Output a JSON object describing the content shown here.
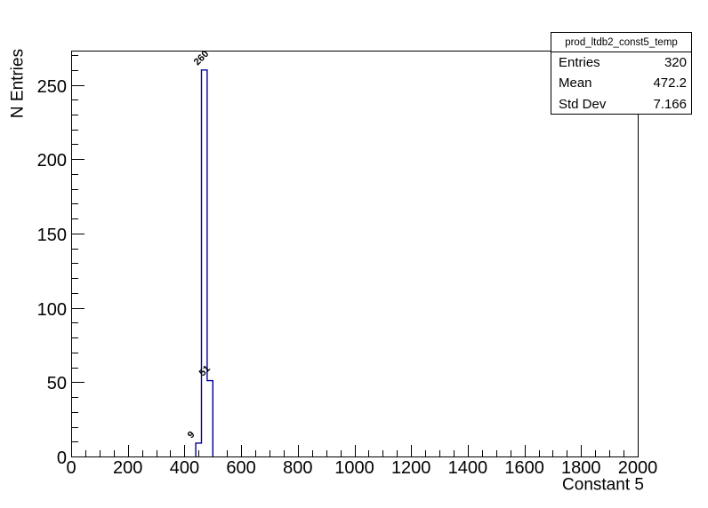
{
  "chart_data": {
    "type": "bar",
    "title": "",
    "xlabel": "Constant 5",
    "ylabel": "N Entries",
    "xlim": [
      0,
      2000
    ],
    "ylim": [
      0,
      273
    ],
    "x_major_ticks": [
      0,
      200,
      400,
      600,
      800,
      1000,
      1200,
      1400,
      1600,
      1800,
      2000
    ],
    "x_minor_step": 50,
    "y_major_ticks": [
      0,
      50,
      100,
      150,
      200,
      250
    ],
    "y_minor_step": 10,
    "grid": false,
    "legend": "none",
    "line_color": "#000099",
    "bins": [
      {
        "x_low": 440,
        "x_high": 460,
        "count": 9,
        "label": "9"
      },
      {
        "x_low": 460,
        "x_high": 480,
        "count": 260,
        "label": "260"
      },
      {
        "x_low": 480,
        "x_high": 500,
        "count": 51,
        "label": "51"
      }
    ]
  },
  "stats_box": {
    "title": "prod_ltdb2_const5_temp",
    "rows": [
      {
        "label": "Entries",
        "value": "320"
      },
      {
        "label": "Mean",
        "value": "472.2"
      },
      {
        "label": "Std Dev",
        "value": "7.166"
      }
    ]
  }
}
